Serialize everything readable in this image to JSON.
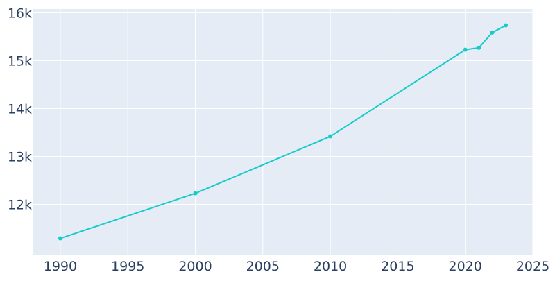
{
  "chart_data": {
    "type": "line",
    "title": "",
    "xlabel": "",
    "ylabel": "",
    "xlim": [
      1988,
      2025
    ],
    "ylim": [
      10950,
      16080
    ],
    "grid": true,
    "legend": "none",
    "colors": {
      "plot_bg": "#e5ecf6",
      "grid": "#ffffff",
      "line": "#17cbc9",
      "tick_text": "#2a3f5f"
    },
    "x_ticks": [
      1990,
      1995,
      2000,
      2005,
      2010,
      2015,
      2020,
      2025
    ],
    "y_ticks": [
      12000,
      13000,
      14000,
      15000,
      16000
    ],
    "x_tick_labels": [
      "1990",
      "1995",
      "2000",
      "2005",
      "2010",
      "2015",
      "2020",
      "2025"
    ],
    "y_tick_labels": [
      "12k",
      "13k",
      "14k",
      "15k",
      "16k"
    ],
    "series": [
      {
        "x": [
          1990,
          2000,
          2010,
          2020,
          2021,
          2022,
          2023
        ],
        "y": [
          11290,
          12230,
          13420,
          15230,
          15270,
          15590,
          15740
        ]
      }
    ]
  }
}
